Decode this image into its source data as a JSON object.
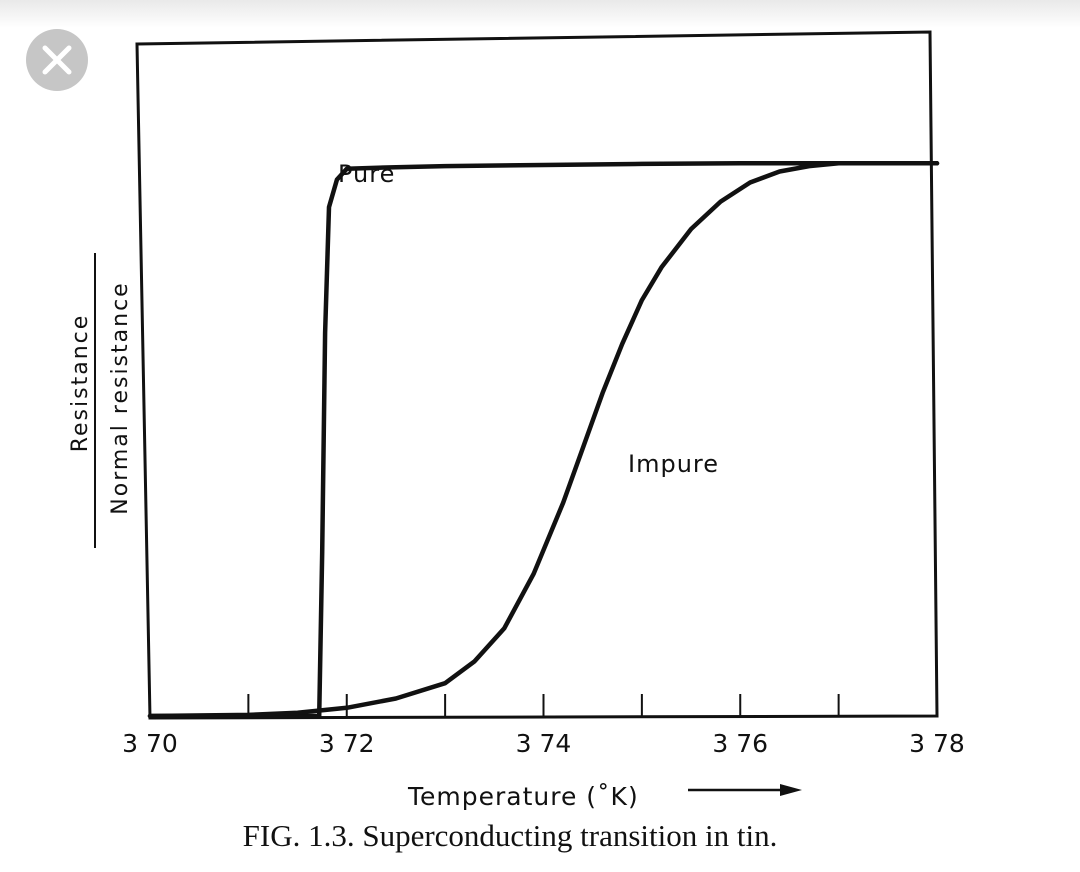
{
  "close_button": {
    "icon": "close-icon",
    "background": "#c6c6c6",
    "glyph_color": "#ffffff"
  },
  "chart_data": {
    "type": "line",
    "title": "",
    "xlabel": "Temperature (˚K)",
    "ylabel_numerator": "Resistance",
    "ylabel_denominator": "Normal resistance",
    "x_tick_labels": [
      "3 70",
      "3 72",
      "3 74",
      "3 76",
      "3 78"
    ],
    "x_ticks": [
      3.7,
      3.72,
      3.74,
      3.76,
      3.78
    ],
    "x_minor_ticks": [
      3.71,
      3.73,
      3.75,
      3.77
    ],
    "xlim": [
      3.7,
      3.78
    ],
    "ylim": [
      0,
      1.25
    ],
    "grid": false,
    "series": [
      {
        "name": "Pure",
        "x": [
          3.7,
          3.71,
          3.7172,
          3.7175,
          3.7178,
          3.7182,
          3.719,
          3.72,
          3.725,
          3.73,
          3.74,
          3.75,
          3.76,
          3.77,
          3.78
        ],
        "y": [
          0,
          0,
          0,
          0.3,
          0.7,
          0.93,
          0.98,
          1.0,
          1.003,
          1.005,
          1.007,
          1.009,
          1.01,
          1.01,
          1.01
        ]
      },
      {
        "name": "Impure",
        "x": [
          3.7,
          3.71,
          3.715,
          3.72,
          3.725,
          3.73,
          3.733,
          3.736,
          3.739,
          3.742,
          3.744,
          3.746,
          3.748,
          3.75,
          3.752,
          3.755,
          3.758,
          3.761,
          3.764,
          3.767,
          3.77,
          3.775,
          3.78
        ],
        "y": [
          0,
          0.002,
          0.006,
          0.015,
          0.032,
          0.06,
          0.1,
          0.16,
          0.26,
          0.39,
          0.49,
          0.59,
          0.68,
          0.76,
          0.82,
          0.89,
          0.94,
          0.975,
          0.995,
          1.005,
          1.01,
          1.01,
          1.01
        ]
      }
    ]
  },
  "caption": "FIG. 1.3.  Superconducting transition in tin."
}
